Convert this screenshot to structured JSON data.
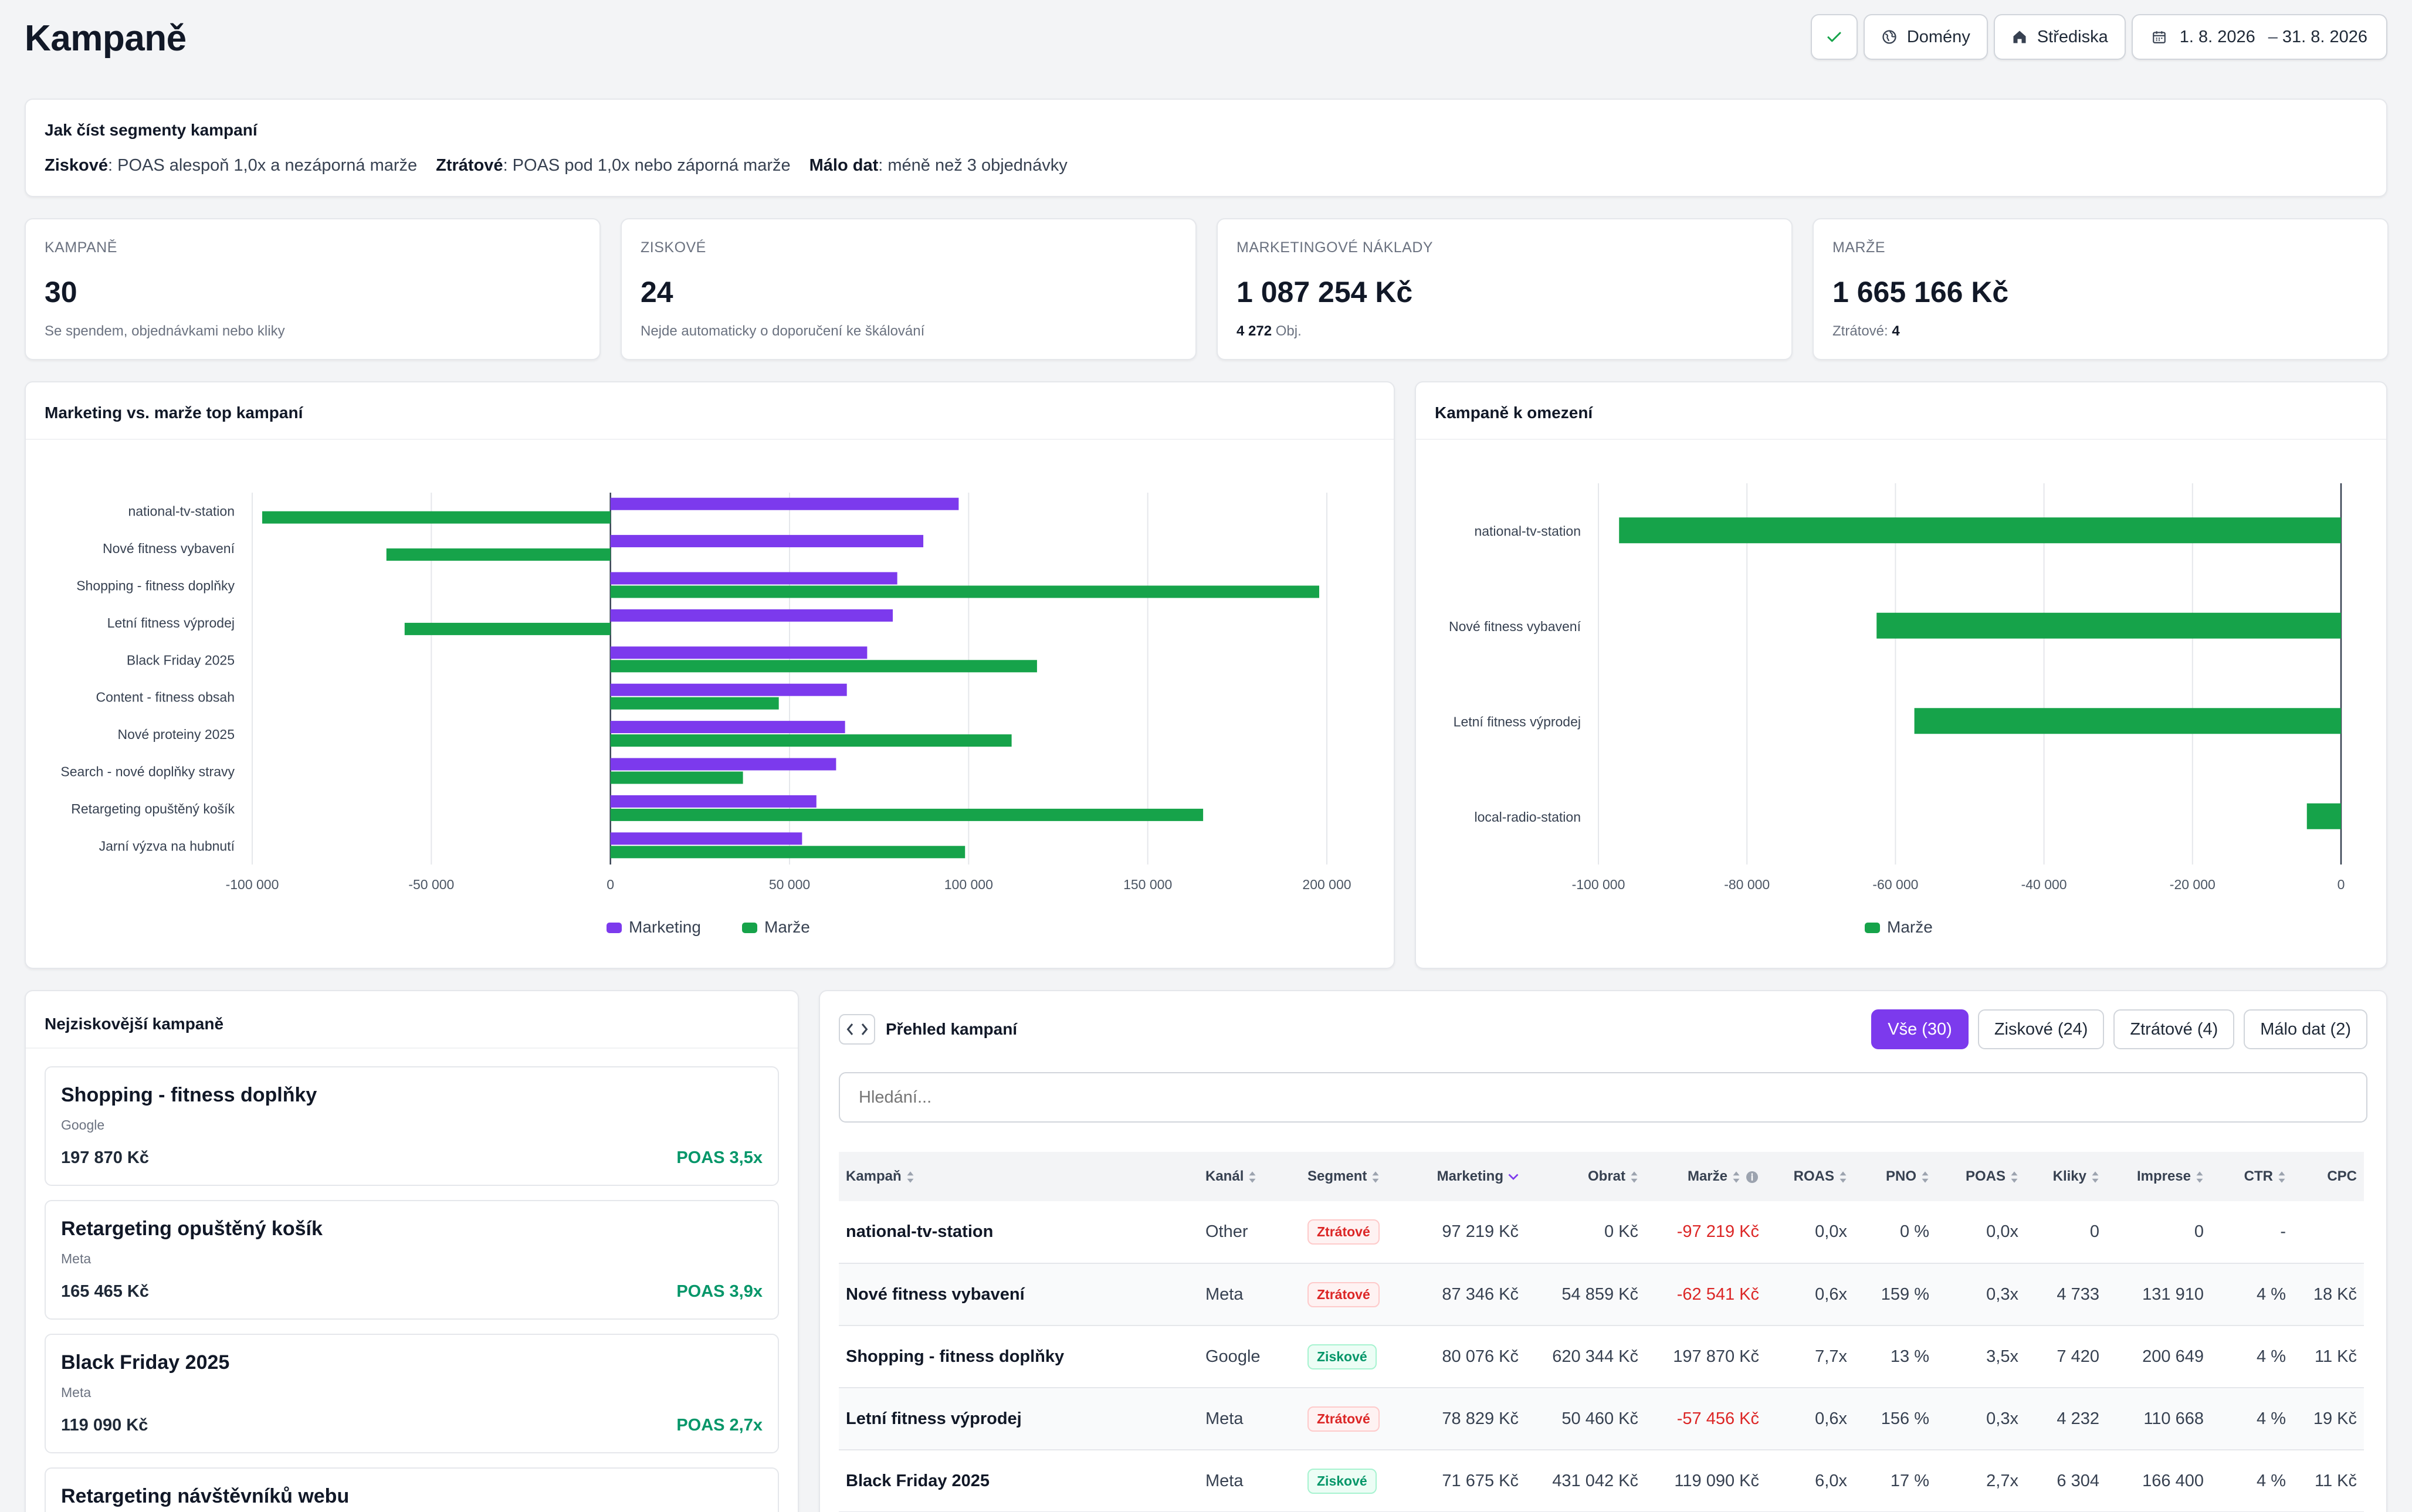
{
  "header": {
    "title": "Kampaně",
    "domains_label": "Domény",
    "centers_label": "Střediska",
    "date_from": "1. 8. 2026",
    "date_sep": "–",
    "date_to": "31. 8. 2026"
  },
  "segments_info": {
    "title": "Jak číst segmenty kampaní",
    "items": [
      {
        "term": "Ziskové",
        "desc": ": POAS alespoň 1,0x a nezáporná marže"
      },
      {
        "term": "Ztrátové",
        "desc": ": POAS pod 1,0x nebo záporná marže"
      },
      {
        "term": "Málo dat",
        "desc": ": méně než 3 objednávky"
      }
    ]
  },
  "kpis": [
    {
      "label": "KAMPANĚ",
      "value": "30",
      "sub": "Se spendem, objednávkami nebo kliky",
      "sub_bold": ""
    },
    {
      "label": "ZISKOVÉ",
      "value": "24",
      "sub": "Nejde automaticky o doporučení ke škálování",
      "sub_bold": ""
    },
    {
      "label": "MARKETINGOVÉ NÁKLADY",
      "value": "1 087 254 Kč",
      "sub": " Obj.",
      "sub_bold": "4 272"
    },
    {
      "label": "MARŽE",
      "value": "1 665 166 Kč",
      "sub": "Ztrátové: ",
      "sub_bold": "4"
    }
  ],
  "chart_left_title": "Marketing vs. marže top kampaní",
  "chart_right_title": "Kampaně k omezení",
  "chart_data": [
    {
      "type": "bar",
      "orientation": "horizontal",
      "categories": [
        "national-tv-station",
        "Nové fitness vybavení",
        "Shopping - fitness doplňky",
        "Letní fitness výprodej",
        "Black Friday 2025",
        "Content - fitness obsah",
        "Nové proteiny 2025",
        "Search - nové doplňky stravy",
        "Retargeting opuštěný košík",
        "Jarní výzva na hubnutí"
      ],
      "series": [
        {
          "name": "Marketing",
          "color": "#7c3aed",
          "values": [
            97219,
            87346,
            80076,
            78829,
            71675,
            66000,
            65500,
            63000,
            57500,
            53500
          ]
        },
        {
          "name": "Marže",
          "color": "#16a34a",
          "values": [
            -97219,
            -62541,
            197870,
            -57456,
            119090,
            47000,
            112000,
            37000,
            165465,
            99000
          ]
        }
      ],
      "xlim": [
        -100000,
        200000
      ],
      "x_ticks": [
        "-100 000",
        "-50 000",
        "0",
        "50 000",
        "100 000",
        "150 000",
        "200 000"
      ],
      "legend": "bottom"
    },
    {
      "type": "bar",
      "orientation": "horizontal",
      "categories": [
        "national-tv-station",
        "Nové fitness vybavení",
        "Letní fitness výprodej",
        "local-radio-station"
      ],
      "series": [
        {
          "name": "Marže",
          "color": "#16a34a",
          "values": [
            -97219,
            -62541,
            -57456,
            -4600
          ]
        }
      ],
      "xlim": [
        -100000,
        0
      ],
      "x_ticks": [
        "-100 000",
        "-80 000",
        "-60 000",
        "-40 000",
        "-20 000",
        "0"
      ],
      "legend": "bottom"
    }
  ],
  "top_campaigns": {
    "title": "Nejziskovější kampaně",
    "items": [
      {
        "name": "Shopping - fitness doplňky",
        "channel": "Google",
        "value": "197 870 Kč",
        "poas": "POAS 3,5x"
      },
      {
        "name": "Retargeting opuštěný košík",
        "channel": "Meta",
        "value": "165 465 Kč",
        "poas": "POAS 3,9x"
      },
      {
        "name": "Black Friday 2025",
        "channel": "Meta",
        "value": "119 090 Kč",
        "poas": "POAS 2,7x"
      },
      {
        "name": "Retargeting návštěvníků webu",
        "channel": "",
        "value": "",
        "poas": ""
      }
    ]
  },
  "overview": {
    "title": "Přehled kampaní",
    "filters": [
      {
        "label": "Vše (30)",
        "active": true
      },
      {
        "label": "Ziskové (24)",
        "active": false
      },
      {
        "label": "Ztrátové (4)",
        "active": false
      },
      {
        "label": "Málo dat (2)",
        "active": false
      }
    ],
    "search_placeholder": "Hledání...",
    "columns": [
      "Kampaň",
      "Kanál",
      "Segment",
      "Marketing",
      "Obrat",
      "Marže",
      "ROAS",
      "PNO",
      "POAS",
      "Kliky",
      "Imprese",
      "CTR",
      "CPC"
    ],
    "rows": [
      [
        "national-tv-station",
        "Other",
        "Ztrátové",
        "97 219 Kč",
        "0 Kč",
        "-97 219 Kč",
        "0,0x",
        "0 %",
        "0,0x",
        "0",
        "0",
        "-",
        ""
      ],
      [
        "Nové fitness vybavení",
        "Meta",
        "Ztrátové",
        "87 346 Kč",
        "54 859 Kč",
        "-62 541 Kč",
        "0,6x",
        "159 %",
        "0,3x",
        "4 733",
        "131 910",
        "4 %",
        "18 Kč"
      ],
      [
        "Shopping - fitness doplňky",
        "Google",
        "Ziskové",
        "80 076 Kč",
        "620 344 Kč",
        "197 870 Kč",
        "7,7x",
        "13 %",
        "3,5x",
        "7 420",
        "200 649",
        "4 %",
        "11 Kč"
      ],
      [
        "Letní fitness výprodej",
        "Meta",
        "Ztrátové",
        "78 829 Kč",
        "50 460 Kč",
        "-57 456 Kč",
        "0,6x",
        "156 %",
        "0,3x",
        "4 232",
        "110 668",
        "4 %",
        "19 Kč"
      ],
      [
        "Black Friday 2025",
        "Meta",
        "Ziskové",
        "71 675 Kč",
        "431 042 Kč",
        "119 090 Kč",
        "6,0x",
        "17 %",
        "2,7x",
        "6 304",
        "166 400",
        "4 %",
        "11 Kč"
      ]
    ]
  }
}
